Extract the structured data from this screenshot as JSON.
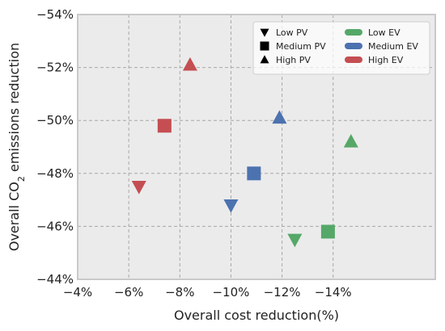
{
  "chart_data": {
    "type": "scatter",
    "xlabel": "Overall cost reduction(%)",
    "ylabel_main": "Overall CO",
    "ylabel_sub": "2",
    "ylabel_tail": " emissions reduction",
    "xlim": [
      -4,
      -18
    ],
    "ylim": [
      -44,
      -54
    ],
    "xticks": [
      -4,
      -6,
      -8,
      -10,
      -12,
      -14
    ],
    "xtick_labels": [
      "−4%",
      "−6%",
      "−8%",
      "−10%",
      "−12%",
      "−14%"
    ],
    "yticks": [
      -44,
      -46,
      -48,
      -50,
      -52,
      -54
    ],
    "ytick_labels": [
      "−44%",
      "−46%",
      "−48%",
      "−50%",
      "−52%",
      "−54%"
    ],
    "grid": true,
    "legend_placement": "top-right",
    "shape_legend": [
      {
        "label": "Low PV",
        "marker": "triangle-down"
      },
      {
        "label": "Medium PV",
        "marker": "square"
      },
      {
        "label": "High PV",
        "marker": "triangle-up"
      }
    ],
    "color_legend": [
      {
        "label": "Low EV",
        "color": "#55a868"
      },
      {
        "label": "Medium EV",
        "color": "#4c72b0"
      },
      {
        "label": "High EV",
        "color": "#c44e52"
      }
    ],
    "points": [
      {
        "pv": "Low PV",
        "ev": "High EV",
        "x": -6.4,
        "y": -47.5
      },
      {
        "pv": "Medium PV",
        "ev": "High EV",
        "x": -7.4,
        "y": -49.8
      },
      {
        "pv": "High PV",
        "ev": "High EV",
        "x": -8.4,
        "y": -52.1
      },
      {
        "pv": "Low PV",
        "ev": "Medium EV",
        "x": -10.0,
        "y": -46.8
      },
      {
        "pv": "Medium PV",
        "ev": "Medium EV",
        "x": -10.9,
        "y": -48.0
      },
      {
        "pv": "High PV",
        "ev": "Medium EV",
        "x": -11.9,
        "y": -50.1
      },
      {
        "pv": "Low PV",
        "ev": "Low EV",
        "x": -12.5,
        "y": -45.5
      },
      {
        "pv": "Medium PV",
        "ev": "Low EV",
        "x": -13.8,
        "y": -45.8
      },
      {
        "pv": "High PV",
        "ev": "Low EV",
        "x": -14.7,
        "y": -49.2
      }
    ],
    "colors": {
      "plot_background": "#ebebeb",
      "grid": "#a8a8a8",
      "frame": "#c9c9c9"
    }
  }
}
